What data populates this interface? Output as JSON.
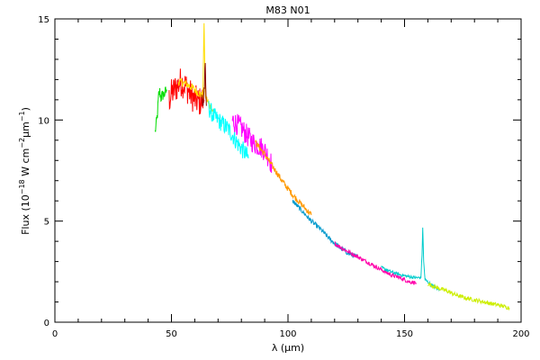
{
  "chart_data": {
    "type": "line",
    "title": "M83 N01",
    "xlabel": "λ (μm)",
    "ylabel_parts": {
      "prefix": "Flux (10",
      "exp1": "−18",
      "mid": " W cm",
      "exp2": "−2",
      "unit": "μm",
      "exp3": "−1",
      "suffix": ")"
    },
    "xlim": [
      0,
      200
    ],
    "ylim": [
      0,
      15
    ],
    "x_ticks": [
      0,
      50,
      100,
      150,
      200
    ],
    "y_ticks": [
      0,
      5,
      10,
      15
    ],
    "x_tick_labels": [
      "0",
      "50",
      "100",
      "150",
      "200"
    ],
    "y_tick_labels": [
      "0",
      "5",
      "10",
      "15"
    ],
    "grid": false,
    "noise_note": "segments drawn with jitter amplitude per segment",
    "series": [
      {
        "color": "#00dd00",
        "noise": 0.3,
        "points": [
          [
            43,
            9.4
          ],
          [
            43.5,
            9.8
          ],
          [
            44,
            10.3
          ],
          [
            44.5,
            11.2
          ],
          [
            45,
            11.4
          ],
          [
            45.5,
            11.1
          ],
          [
            46,
            11.2
          ],
          [
            47,
            11.3
          ],
          [
            48,
            11.5
          ]
        ]
      },
      {
        "color": "#ff0000",
        "noise": 0.75,
        "points": [
          [
            49,
            11.0
          ],
          [
            50,
            11.3
          ],
          [
            52,
            11.6
          ],
          [
            54,
            11.9
          ],
          [
            56,
            11.7
          ],
          [
            58,
            11.3
          ],
          [
            60,
            11.0
          ],
          [
            62,
            10.9
          ],
          [
            64,
            11.0
          ]
        ]
      },
      {
        "color": "#ffdd00",
        "noise": 0.2,
        "points": [
          [
            53,
            11.9
          ],
          [
            56,
            11.8
          ],
          [
            59,
            11.6
          ],
          [
            62,
            11.3
          ],
          [
            63.5,
            11.2
          ],
          [
            64,
            14.9
          ],
          [
            64.5,
            11.2
          ],
          [
            66,
            10.8
          ],
          [
            68,
            10.4
          ]
        ]
      },
      {
        "color": "#880000",
        "noise": 0.6,
        "points": [
          [
            63,
            11.1
          ],
          [
            63.6,
            10.8
          ],
          [
            64,
            11.5
          ],
          [
            64.5,
            12.3
          ],
          [
            65,
            10.7
          ]
        ]
      },
      {
        "color": "#00ffff",
        "noise": 0.45,
        "points": [
          [
            66,
            10.6
          ],
          [
            68,
            10.2
          ],
          [
            70,
            10.0
          ],
          [
            72,
            9.8
          ],
          [
            74,
            9.6
          ],
          [
            76,
            9.3
          ],
          [
            78,
            8.9
          ],
          [
            80,
            8.6
          ],
          [
            82,
            8.3
          ],
          [
            83,
            8.1
          ]
        ]
      },
      {
        "color": "#ff00ff",
        "noise": 0.55,
        "points": [
          [
            76,
            10.0
          ],
          [
            78,
            9.8
          ],
          [
            80,
            9.6
          ],
          [
            82,
            9.3
          ],
          [
            84,
            9.0
          ],
          [
            86,
            8.8
          ],
          [
            88,
            8.7
          ],
          [
            90,
            8.5
          ],
          [
            92,
            8.1
          ],
          [
            93,
            7.8
          ]
        ]
      },
      {
        "color": "#ff9900",
        "noise": 0.15,
        "points": [
          [
            86,
            8.9
          ],
          [
            90,
            8.3
          ],
          [
            94,
            7.6
          ],
          [
            98,
            6.9
          ],
          [
            102,
            6.3
          ],
          [
            106,
            5.8
          ],
          [
            110,
            5.3
          ]
        ]
      },
      {
        "color": "#0099cc",
        "noise": 0.12,
        "points": [
          [
            102,
            6.0
          ],
          [
            106,
            5.5
          ],
          [
            110,
            5.0
          ],
          [
            114,
            4.6
          ],
          [
            118,
            4.1
          ],
          [
            122,
            3.7
          ],
          [
            126,
            3.4
          ],
          [
            130,
            3.2
          ]
        ]
      },
      {
        "color": "#ff00aa",
        "noise": 0.1,
        "points": [
          [
            120,
            3.9
          ],
          [
            124,
            3.6
          ],
          [
            128,
            3.35
          ],
          [
            132,
            3.1
          ],
          [
            136,
            2.85
          ],
          [
            140,
            2.6
          ],
          [
            144,
            2.35
          ],
          [
            148,
            2.2
          ],
          [
            152,
            2.0
          ],
          [
            155,
            1.95
          ]
        ]
      },
      {
        "color": "#00cccc",
        "noise": 0.08,
        "points": [
          [
            140,
            2.7
          ],
          [
            144,
            2.5
          ],
          [
            148,
            2.35
          ],
          [
            152,
            2.25
          ],
          [
            155,
            2.2
          ],
          [
            157,
            2.2
          ],
          [
            157.5,
            3.3
          ],
          [
            157.8,
            4.7
          ],
          [
            158.2,
            3.0
          ],
          [
            158.8,
            2.1
          ],
          [
            162,
            1.8
          ],
          [
            165,
            1.6
          ]
        ]
      },
      {
        "color": "#ccee00",
        "noise": 0.1,
        "points": [
          [
            160,
            1.9
          ],
          [
            164,
            1.7
          ],
          [
            168,
            1.55
          ],
          [
            172,
            1.35
          ],
          [
            176,
            1.2
          ],
          [
            180,
            1.1
          ],
          [
            184,
            1.0
          ],
          [
            188,
            0.9
          ],
          [
            192,
            0.8
          ],
          [
            195,
            0.7
          ]
        ]
      }
    ]
  }
}
